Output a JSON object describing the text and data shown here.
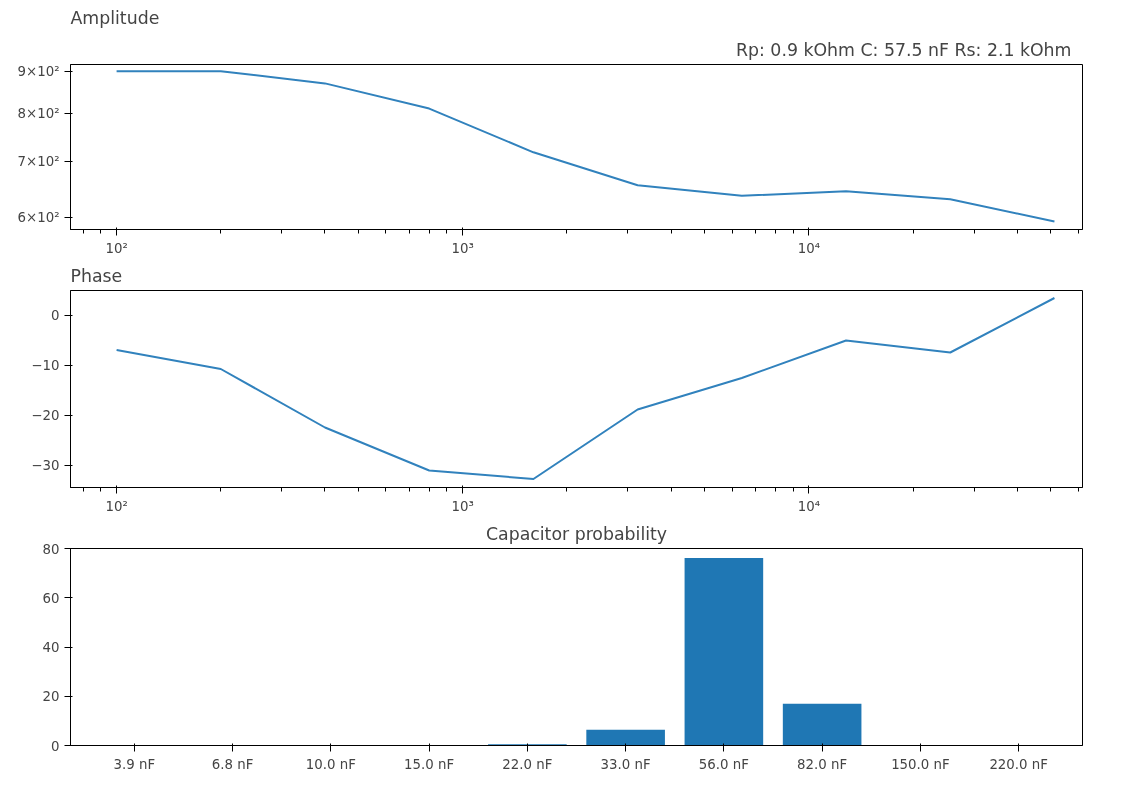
{
  "chart_data": [
    {
      "type": "line",
      "title": "Amplitude",
      "annotations": [
        "Rp: 0.9 kOhm  C: 57.5 nF  Rs: 2.1 kOhm"
      ],
      "log": "xy",
      "x": [
        100,
        200,
        400,
        800,
        1600,
        3200,
        6400,
        12800,
        25600,
        51200
      ],
      "series": [
        {
          "color": "#3182bd",
          "values": [
            901,
            901,
            871,
            812,
            719,
            656,
            637,
            645,
            631,
            593
          ]
        }
      ],
      "xlim": [
        73.6,
        61700
      ],
      "ylim": [
        580,
        918
      ],
      "xticks": [
        {
          "value": 100,
          "label": "10²"
        },
        {
          "value": 1000,
          "label": "10³"
        },
        {
          "value": 10000,
          "label": "10⁴"
        }
      ],
      "yticks": [
        {
          "value": 600,
          "label": "6×10²"
        },
        {
          "value": 700,
          "label": "7×10²"
        },
        {
          "value": 800,
          "label": "8×10²"
        },
        {
          "value": 900,
          "label": "9×10²"
        }
      ],
      "grid": false
    },
    {
      "type": "line",
      "title": "Phase",
      "log": "x",
      "x": [
        100,
        200,
        400,
        800,
        1600,
        3200,
        6400,
        12800,
        25600,
        51200
      ],
      "series": [
        {
          "color": "#3182bd",
          "values": [
            -7,
            -10.8,
            -22.5,
            -31.1,
            -32.8,
            -18.9,
            -12.6,
            -5.1,
            -7.5,
            3.4
          ]
        }
      ],
      "xlim": [
        73.6,
        61700
      ],
      "ylim": [
        -34.5,
        4.9
      ],
      "xticks": [
        {
          "value": 100,
          "label": "10²"
        },
        {
          "value": 1000,
          "label": "10³"
        },
        {
          "value": 10000,
          "label": "10⁴"
        }
      ],
      "yticks": [
        -30,
        -20,
        -10,
        0
      ],
      "grid": false
    },
    {
      "type": "bar",
      "title": "Capacitor probability",
      "categories": [
        "3.9 nF",
        "6.8 nF",
        "10.0 nF",
        "15.0 nF",
        "22.0 nF",
        "33.0 nF",
        "56.0 nF",
        "82.0 nF",
        "150.0 nF",
        "220.0 nF"
      ],
      "series": [
        {
          "color": "#1f77b4",
          "values": [
            0,
            0,
            0,
            0,
            0.5,
            6.4,
            76.1,
            17.0,
            0,
            0
          ]
        }
      ],
      "ylim": [
        0,
        80
      ],
      "yticks": [
        0,
        20,
        40,
        60,
        80
      ],
      "grid": false
    }
  ]
}
